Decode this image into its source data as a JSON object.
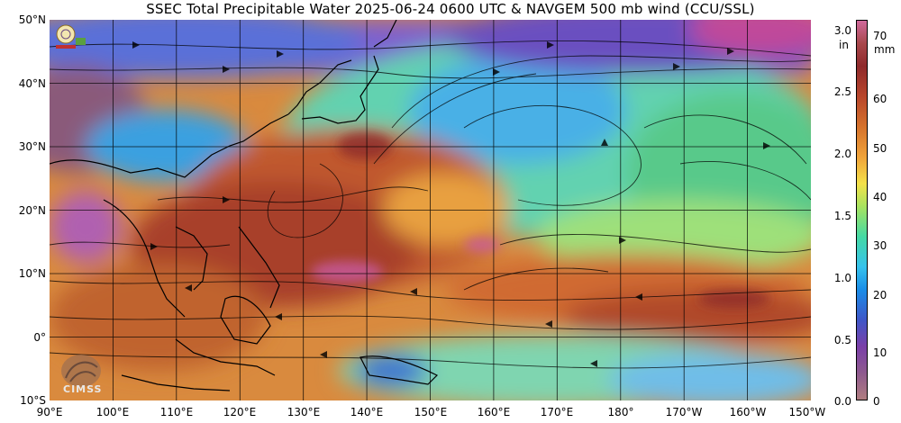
{
  "title": "SSEC Total Precipitable Water  2025-06-24 0600 UTC & NAVGEM 500 mb wind (CCU/SSL)",
  "lat_labels": [
    "50°N",
    "40°N",
    "30°N",
    "20°N",
    "10°N",
    "0°",
    "10°S"
  ],
  "lon_labels": [
    "90°E",
    "100°E",
    "110°E",
    "120°E",
    "130°E",
    "140°E",
    "150°E",
    "160°E",
    "170°E",
    "180°",
    "170°W",
    "160°W",
    "150°W"
  ],
  "colorbar": {
    "unit_in": "in",
    "unit_mm": "mm",
    "in_ticks": [
      "3.0",
      "2.5",
      "2.0",
      "1.5",
      "1.0",
      "0.5",
      "0.0"
    ],
    "mm_ticks": [
      "70",
      "60",
      "50",
      "40",
      "30",
      "20",
      "10",
      "0"
    ]
  },
  "logo_text": "CIMSS",
  "colors": {
    "moist": "#a83a2c",
    "mid": "#e08a3a",
    "dry_green": "#8ed46a",
    "dry_blue": "#2f8ee0",
    "very_dry": "#7a3fa8"
  }
}
